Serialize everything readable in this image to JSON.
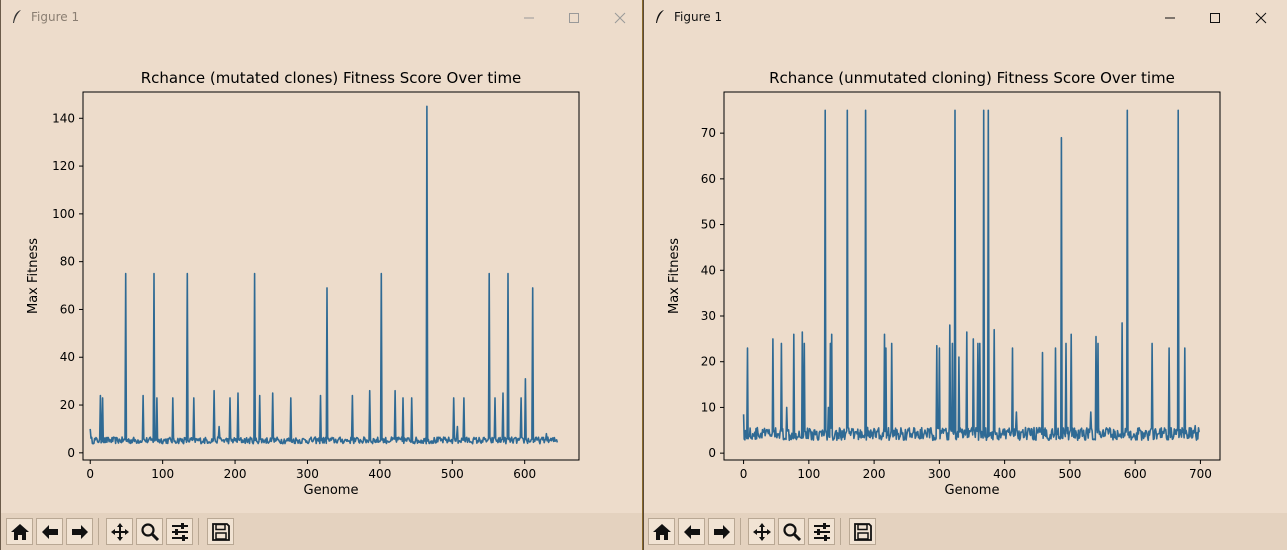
{
  "windows": [
    {
      "id": "left",
      "window_title": "Figure 1",
      "toolbar": [
        "home",
        "back",
        "forward",
        "pan",
        "zoom",
        "configure",
        "save"
      ]
    },
    {
      "id": "right",
      "window_title": "Figure 1",
      "toolbar": [
        "home",
        "back",
        "forward",
        "pan",
        "zoom",
        "configure",
        "save"
      ]
    }
  ],
  "colors": {
    "line": "#2f6a94",
    "window_bg": "#eddccb",
    "plot_bg": "#eddccb"
  },
  "chart_data": [
    {
      "type": "line",
      "title": "Rchance (mutated clones) Fitness Score Over time",
      "xlabel": "Genome",
      "ylabel": "Max Fitness",
      "xlim": [
        -10,
        675
      ],
      "ylim": [
        -3,
        151
      ],
      "xticks": [
        0,
        100,
        200,
        300,
        400,
        500,
        600
      ],
      "yticks": [
        0,
        20,
        40,
        60,
        80,
        100,
        120,
        140
      ],
      "grid": false,
      "n_points": 646,
      "baseline": 5,
      "spikes": [
        {
          "x": 0,
          "y": 10
        },
        {
          "x": 14,
          "y": 24
        },
        {
          "x": 17,
          "y": 23
        },
        {
          "x": 49,
          "y": 75
        },
        {
          "x": 73,
          "y": 24
        },
        {
          "x": 88,
          "y": 75
        },
        {
          "x": 92,
          "y": 23
        },
        {
          "x": 114,
          "y": 23
        },
        {
          "x": 134,
          "y": 75
        },
        {
          "x": 143,
          "y": 23
        },
        {
          "x": 171,
          "y": 26
        },
        {
          "x": 178,
          "y": 11
        },
        {
          "x": 193,
          "y": 23
        },
        {
          "x": 204,
          "y": 25
        },
        {
          "x": 227,
          "y": 75
        },
        {
          "x": 234,
          "y": 24
        },
        {
          "x": 252,
          "y": 25
        },
        {
          "x": 277,
          "y": 23
        },
        {
          "x": 318,
          "y": 24
        },
        {
          "x": 327,
          "y": 69
        },
        {
          "x": 362,
          "y": 24
        },
        {
          "x": 386,
          "y": 26
        },
        {
          "x": 402,
          "y": 75
        },
        {
          "x": 421,
          "y": 26
        },
        {
          "x": 432,
          "y": 23
        },
        {
          "x": 444,
          "y": 23
        },
        {
          "x": 465,
          "y": 145
        },
        {
          "x": 502,
          "y": 23
        },
        {
          "x": 507,
          "y": 11
        },
        {
          "x": 516,
          "y": 23
        },
        {
          "x": 551,
          "y": 75
        },
        {
          "x": 559,
          "y": 23
        },
        {
          "x": 570,
          "y": 25
        },
        {
          "x": 577,
          "y": 75
        },
        {
          "x": 595,
          "y": 23
        },
        {
          "x": 601,
          "y": 31
        },
        {
          "x": 611,
          "y": 69
        },
        {
          "x": 630,
          "y": 8
        }
      ]
    },
    {
      "type": "line",
      "title": "Rchance (unmutated cloning) Fitness Score Over time",
      "xlabel": "Genome",
      "ylabel": "Max Fitness",
      "xlim": [
        -30,
        730
      ],
      "ylim": [
        -1.5,
        79
      ],
      "xticks": [
        0,
        100,
        200,
        300,
        400,
        500,
        600,
        700
      ],
      "yticks": [
        0,
        10,
        20,
        30,
        40,
        50,
        60,
        70
      ],
      "grid": false,
      "n_points": 700,
      "baseline": 4,
      "spikes": [
        {
          "x": 0,
          "y": 8.5
        },
        {
          "x": 6,
          "y": 23
        },
        {
          "x": 45,
          "y": 25
        },
        {
          "x": 58,
          "y": 24
        },
        {
          "x": 66,
          "y": 10
        },
        {
          "x": 77,
          "y": 26
        },
        {
          "x": 90,
          "y": 26.5
        },
        {
          "x": 93,
          "y": 24
        },
        {
          "x": 125,
          "y": 75
        },
        {
          "x": 130,
          "y": 10
        },
        {
          "x": 133,
          "y": 24
        },
        {
          "x": 135,
          "y": 26
        },
        {
          "x": 159,
          "y": 75
        },
        {
          "x": 187,
          "y": 75
        },
        {
          "x": 216,
          "y": 26
        },
        {
          "x": 218,
          "y": 23
        },
        {
          "x": 227,
          "y": 24
        },
        {
          "x": 296,
          "y": 23.5
        },
        {
          "x": 300,
          "y": 23
        },
        {
          "x": 316,
          "y": 28
        },
        {
          "x": 320,
          "y": 24
        },
        {
          "x": 324,
          "y": 75
        },
        {
          "x": 330,
          "y": 21
        },
        {
          "x": 342,
          "y": 26.5
        },
        {
          "x": 352,
          "y": 25
        },
        {
          "x": 359,
          "y": 24
        },
        {
          "x": 362,
          "y": 24
        },
        {
          "x": 368,
          "y": 75
        },
        {
          "x": 375,
          "y": 75
        },
        {
          "x": 384,
          "y": 27
        },
        {
          "x": 412,
          "y": 23
        },
        {
          "x": 418,
          "y": 9
        },
        {
          "x": 458,
          "y": 22
        },
        {
          "x": 478,
          "y": 23
        },
        {
          "x": 487,
          "y": 69
        },
        {
          "x": 494,
          "y": 24
        },
        {
          "x": 502,
          "y": 26
        },
        {
          "x": 532,
          "y": 9
        },
        {
          "x": 540,
          "y": 25.5
        },
        {
          "x": 543,
          "y": 24
        },
        {
          "x": 580,
          "y": 28.5
        },
        {
          "x": 588,
          "y": 75
        },
        {
          "x": 626,
          "y": 24
        },
        {
          "x": 652,
          "y": 23
        },
        {
          "x": 666,
          "y": 75
        },
        {
          "x": 676,
          "y": 23
        },
        {
          "x": 692,
          "y": 6
        }
      ]
    }
  ]
}
